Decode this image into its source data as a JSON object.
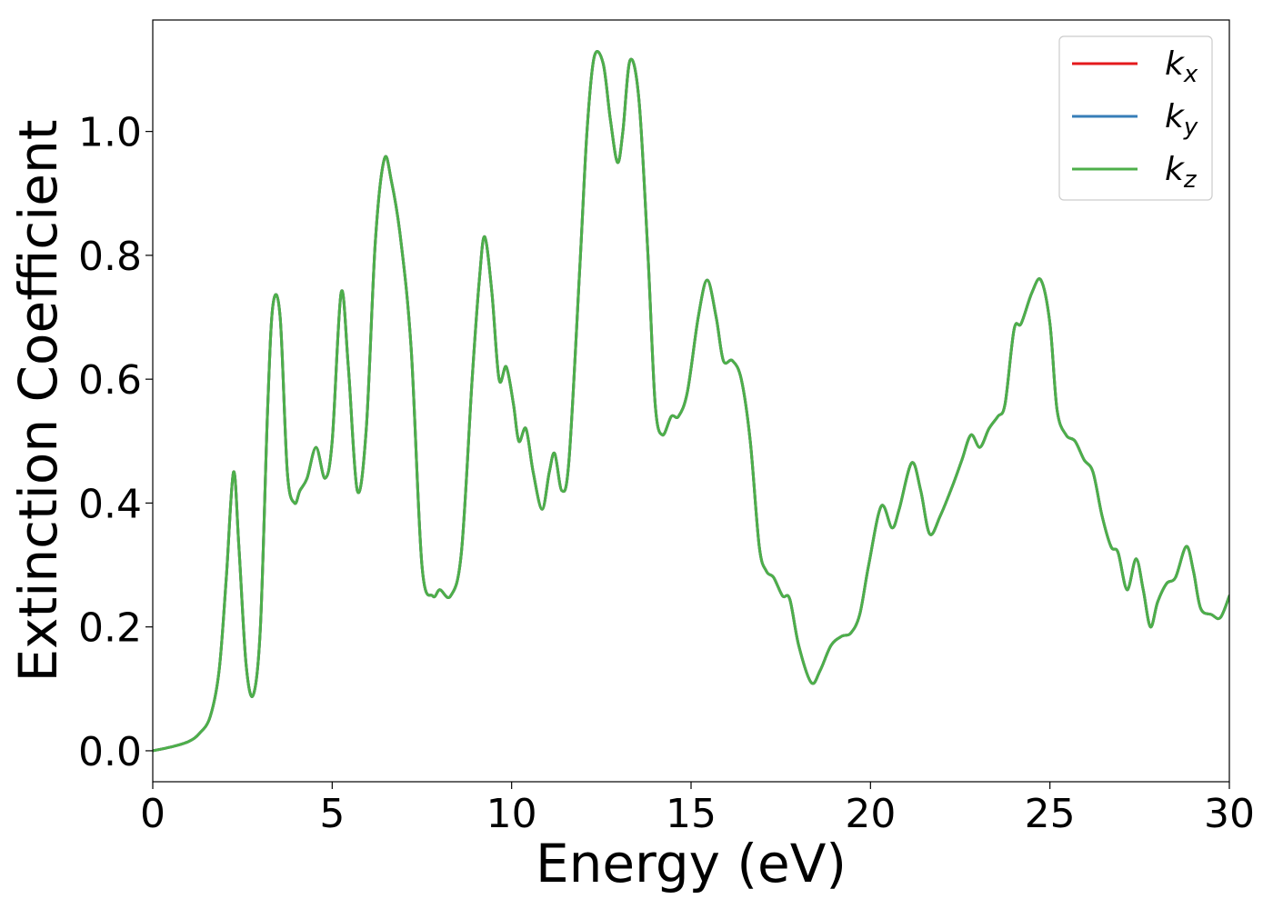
{
  "chart_data": {
    "type": "line",
    "title": "",
    "xlabel": "Energy (eV)",
    "ylabel": "Extinction Coefficient",
    "xlim": [
      0,
      30
    ],
    "ylim": [
      -0.05,
      1.18
    ],
    "x_ticks": [
      0,
      5,
      10,
      15,
      20,
      25,
      30
    ],
    "x_tick_labels": [
      "0",
      "5",
      "10",
      "15",
      "20",
      "25",
      "30"
    ],
    "y_ticks": [
      0.0,
      0.2,
      0.4,
      0.6,
      0.8,
      1.0
    ],
    "y_tick_labels": [
      "0.0",
      "0.2",
      "0.4",
      "0.6",
      "0.8",
      "1.0"
    ],
    "grid": false,
    "legend_position": "top-right",
    "colors": {
      "k_x": "#e41a1c",
      "k_y": "#377eb8",
      "k_z": "#4daf4a"
    },
    "series": [
      {
        "name": "k_x",
        "legend_main": "k",
        "legend_sub": "x",
        "color": "#e41a1c",
        "x": [
          0,
          0.5,
          1.0,
          1.3,
          1.6,
          1.85,
          2.05,
          2.25,
          2.4,
          2.6,
          2.8,
          3.0,
          3.2,
          3.35,
          3.55,
          3.75,
          3.95,
          4.1,
          4.3,
          4.55,
          4.8,
          5.0,
          5.25,
          5.45,
          5.7,
          5.95,
          6.2,
          6.45,
          6.65,
          6.9,
          7.2,
          7.5,
          7.8,
          8.0,
          8.3,
          8.6,
          8.9,
          9.1,
          9.25,
          9.45,
          9.65,
          9.85,
          10.05,
          10.2,
          10.4,
          10.6,
          10.85,
          11.05,
          11.2,
          11.4,
          11.6,
          11.9,
          12.1,
          12.3,
          12.55,
          12.75,
          12.95,
          13.1,
          13.3,
          13.55,
          13.8,
          14.0,
          14.2,
          14.45,
          14.65,
          14.9,
          15.2,
          15.45,
          15.7,
          15.9,
          16.15,
          16.4,
          16.65,
          16.9,
          17.1,
          17.3,
          17.55,
          17.75,
          18.0,
          18.35,
          18.6,
          18.9,
          19.2,
          19.45,
          19.7,
          19.95,
          20.3,
          20.6,
          20.8,
          21.15,
          21.4,
          21.65,
          21.95,
          22.3,
          22.55,
          22.8,
          23.05,
          23.3,
          23.55,
          23.75,
          24.0,
          24.2,
          24.5,
          24.75,
          25.0,
          25.2,
          25.45,
          25.7,
          25.95,
          26.2,
          26.45,
          26.7,
          26.9,
          27.15,
          27.4,
          27.6,
          27.8,
          28.0,
          28.25,
          28.5,
          28.8,
          29.0,
          29.2,
          29.5,
          29.75,
          30.0
        ],
        "y": [
          0.0,
          0.006,
          0.015,
          0.028,
          0.055,
          0.13,
          0.28,
          0.45,
          0.33,
          0.14,
          0.09,
          0.2,
          0.55,
          0.72,
          0.7,
          0.45,
          0.4,
          0.42,
          0.44,
          0.49,
          0.44,
          0.5,
          0.74,
          0.62,
          0.42,
          0.52,
          0.82,
          0.955,
          0.92,
          0.83,
          0.65,
          0.3,
          0.25,
          0.26,
          0.25,
          0.32,
          0.6,
          0.76,
          0.83,
          0.74,
          0.6,
          0.62,
          0.56,
          0.5,
          0.52,
          0.45,
          0.39,
          0.45,
          0.48,
          0.42,
          0.47,
          0.78,
          1.0,
          1.12,
          1.11,
          1.02,
          0.95,
          1.0,
          1.115,
          1.05,
          0.8,
          0.56,
          0.51,
          0.54,
          0.54,
          0.58,
          0.7,
          0.76,
          0.7,
          0.63,
          0.63,
          0.6,
          0.5,
          0.33,
          0.29,
          0.28,
          0.25,
          0.245,
          0.17,
          0.11,
          0.13,
          0.17,
          0.185,
          0.19,
          0.22,
          0.3,
          0.395,
          0.36,
          0.39,
          0.465,
          0.42,
          0.35,
          0.38,
          0.43,
          0.47,
          0.51,
          0.49,
          0.52,
          0.54,
          0.56,
          0.68,
          0.69,
          0.74,
          0.76,
          0.69,
          0.55,
          0.51,
          0.5,
          0.47,
          0.45,
          0.38,
          0.33,
          0.32,
          0.26,
          0.31,
          0.26,
          0.2,
          0.24,
          0.27,
          0.28,
          0.33,
          0.29,
          0.23,
          0.22,
          0.215,
          0.25
        ]
      },
      {
        "name": "k_y",
        "legend_main": "k",
        "legend_sub": "y",
        "color": "#377eb8",
        "x": [
          0,
          0.5,
          1.0,
          1.3,
          1.6,
          1.85,
          2.05,
          2.25,
          2.4,
          2.6,
          2.8,
          3.0,
          3.2,
          3.35,
          3.55,
          3.75,
          3.95,
          4.1,
          4.3,
          4.55,
          4.8,
          5.0,
          5.25,
          5.45,
          5.7,
          5.95,
          6.2,
          6.45,
          6.65,
          6.9,
          7.2,
          7.5,
          7.8,
          8.0,
          8.3,
          8.6,
          8.9,
          9.1,
          9.25,
          9.45,
          9.65,
          9.85,
          10.05,
          10.2,
          10.4,
          10.6,
          10.85,
          11.05,
          11.2,
          11.4,
          11.6,
          11.9,
          12.1,
          12.3,
          12.55,
          12.75,
          12.95,
          13.1,
          13.3,
          13.55,
          13.8,
          14.0,
          14.2,
          14.45,
          14.65,
          14.9,
          15.2,
          15.45,
          15.7,
          15.9,
          16.15,
          16.4,
          16.65,
          16.9,
          17.1,
          17.3,
          17.55,
          17.75,
          18.0,
          18.35,
          18.6,
          18.9,
          19.2,
          19.45,
          19.7,
          19.95,
          20.3,
          20.6,
          20.8,
          21.15,
          21.4,
          21.65,
          21.95,
          22.3,
          22.55,
          22.8,
          23.05,
          23.3,
          23.55,
          23.75,
          24.0,
          24.2,
          24.5,
          24.75,
          25.0,
          25.2,
          25.45,
          25.7,
          25.95,
          26.2,
          26.45,
          26.7,
          26.9,
          27.15,
          27.4,
          27.6,
          27.8,
          28.0,
          28.25,
          28.5,
          28.8,
          29.0,
          29.2,
          29.5,
          29.75,
          30.0
        ],
        "y": [
          0.0,
          0.006,
          0.015,
          0.028,
          0.055,
          0.13,
          0.28,
          0.45,
          0.33,
          0.14,
          0.09,
          0.2,
          0.55,
          0.72,
          0.7,
          0.45,
          0.4,
          0.42,
          0.44,
          0.49,
          0.44,
          0.5,
          0.74,
          0.62,
          0.42,
          0.52,
          0.82,
          0.955,
          0.92,
          0.83,
          0.65,
          0.3,
          0.25,
          0.26,
          0.25,
          0.32,
          0.6,
          0.76,
          0.83,
          0.74,
          0.6,
          0.62,
          0.56,
          0.5,
          0.52,
          0.45,
          0.39,
          0.45,
          0.48,
          0.42,
          0.47,
          0.78,
          1.0,
          1.12,
          1.11,
          1.02,
          0.95,
          1.0,
          1.115,
          1.05,
          0.8,
          0.56,
          0.51,
          0.54,
          0.54,
          0.58,
          0.7,
          0.76,
          0.7,
          0.63,
          0.63,
          0.6,
          0.5,
          0.33,
          0.29,
          0.28,
          0.25,
          0.245,
          0.17,
          0.11,
          0.13,
          0.17,
          0.185,
          0.19,
          0.22,
          0.3,
          0.395,
          0.36,
          0.39,
          0.465,
          0.42,
          0.35,
          0.38,
          0.43,
          0.47,
          0.51,
          0.49,
          0.52,
          0.54,
          0.56,
          0.68,
          0.69,
          0.74,
          0.76,
          0.69,
          0.55,
          0.51,
          0.5,
          0.47,
          0.45,
          0.38,
          0.33,
          0.32,
          0.26,
          0.31,
          0.26,
          0.2,
          0.24,
          0.27,
          0.28,
          0.33,
          0.29,
          0.23,
          0.22,
          0.215,
          0.25
        ]
      },
      {
        "name": "k_z",
        "legend_main": "k",
        "legend_sub": "z",
        "color": "#4daf4a",
        "x": [
          0,
          0.5,
          1.0,
          1.3,
          1.6,
          1.85,
          2.05,
          2.25,
          2.4,
          2.6,
          2.8,
          3.0,
          3.2,
          3.35,
          3.55,
          3.75,
          3.95,
          4.1,
          4.3,
          4.55,
          4.8,
          5.0,
          5.25,
          5.45,
          5.7,
          5.95,
          6.2,
          6.45,
          6.65,
          6.9,
          7.2,
          7.5,
          7.8,
          8.0,
          8.3,
          8.6,
          8.9,
          9.1,
          9.25,
          9.45,
          9.65,
          9.85,
          10.05,
          10.2,
          10.4,
          10.6,
          10.85,
          11.05,
          11.2,
          11.4,
          11.6,
          11.9,
          12.1,
          12.3,
          12.55,
          12.75,
          12.95,
          13.1,
          13.3,
          13.55,
          13.8,
          14.0,
          14.2,
          14.45,
          14.65,
          14.9,
          15.2,
          15.45,
          15.7,
          15.9,
          16.15,
          16.4,
          16.65,
          16.9,
          17.1,
          17.3,
          17.55,
          17.75,
          18.0,
          18.35,
          18.6,
          18.9,
          19.2,
          19.45,
          19.7,
          19.95,
          20.3,
          20.6,
          20.8,
          21.15,
          21.4,
          21.65,
          21.95,
          22.3,
          22.55,
          22.8,
          23.05,
          23.3,
          23.55,
          23.75,
          24.0,
          24.2,
          24.5,
          24.75,
          25.0,
          25.2,
          25.45,
          25.7,
          25.95,
          26.2,
          26.45,
          26.7,
          26.9,
          27.15,
          27.4,
          27.6,
          27.8,
          28.0,
          28.25,
          28.5,
          28.8,
          29.0,
          29.2,
          29.5,
          29.75,
          30.0
        ],
        "y": [
          0.0,
          0.006,
          0.015,
          0.028,
          0.055,
          0.13,
          0.28,
          0.45,
          0.33,
          0.14,
          0.09,
          0.2,
          0.55,
          0.72,
          0.7,
          0.45,
          0.4,
          0.42,
          0.44,
          0.49,
          0.44,
          0.5,
          0.74,
          0.62,
          0.42,
          0.52,
          0.82,
          0.955,
          0.92,
          0.83,
          0.65,
          0.3,
          0.25,
          0.26,
          0.25,
          0.32,
          0.6,
          0.76,
          0.83,
          0.74,
          0.6,
          0.62,
          0.56,
          0.5,
          0.52,
          0.45,
          0.39,
          0.45,
          0.48,
          0.42,
          0.47,
          0.78,
          1.0,
          1.12,
          1.11,
          1.02,
          0.95,
          1.0,
          1.115,
          1.05,
          0.8,
          0.56,
          0.51,
          0.54,
          0.54,
          0.58,
          0.7,
          0.76,
          0.7,
          0.63,
          0.63,
          0.6,
          0.5,
          0.33,
          0.29,
          0.28,
          0.25,
          0.245,
          0.17,
          0.11,
          0.13,
          0.17,
          0.185,
          0.19,
          0.22,
          0.3,
          0.395,
          0.36,
          0.39,
          0.465,
          0.42,
          0.35,
          0.38,
          0.43,
          0.47,
          0.51,
          0.49,
          0.52,
          0.54,
          0.56,
          0.68,
          0.69,
          0.74,
          0.76,
          0.69,
          0.55,
          0.51,
          0.5,
          0.47,
          0.45,
          0.38,
          0.33,
          0.32,
          0.26,
          0.31,
          0.26,
          0.2,
          0.24,
          0.27,
          0.28,
          0.33,
          0.29,
          0.23,
          0.22,
          0.215,
          0.25
        ]
      }
    ]
  }
}
